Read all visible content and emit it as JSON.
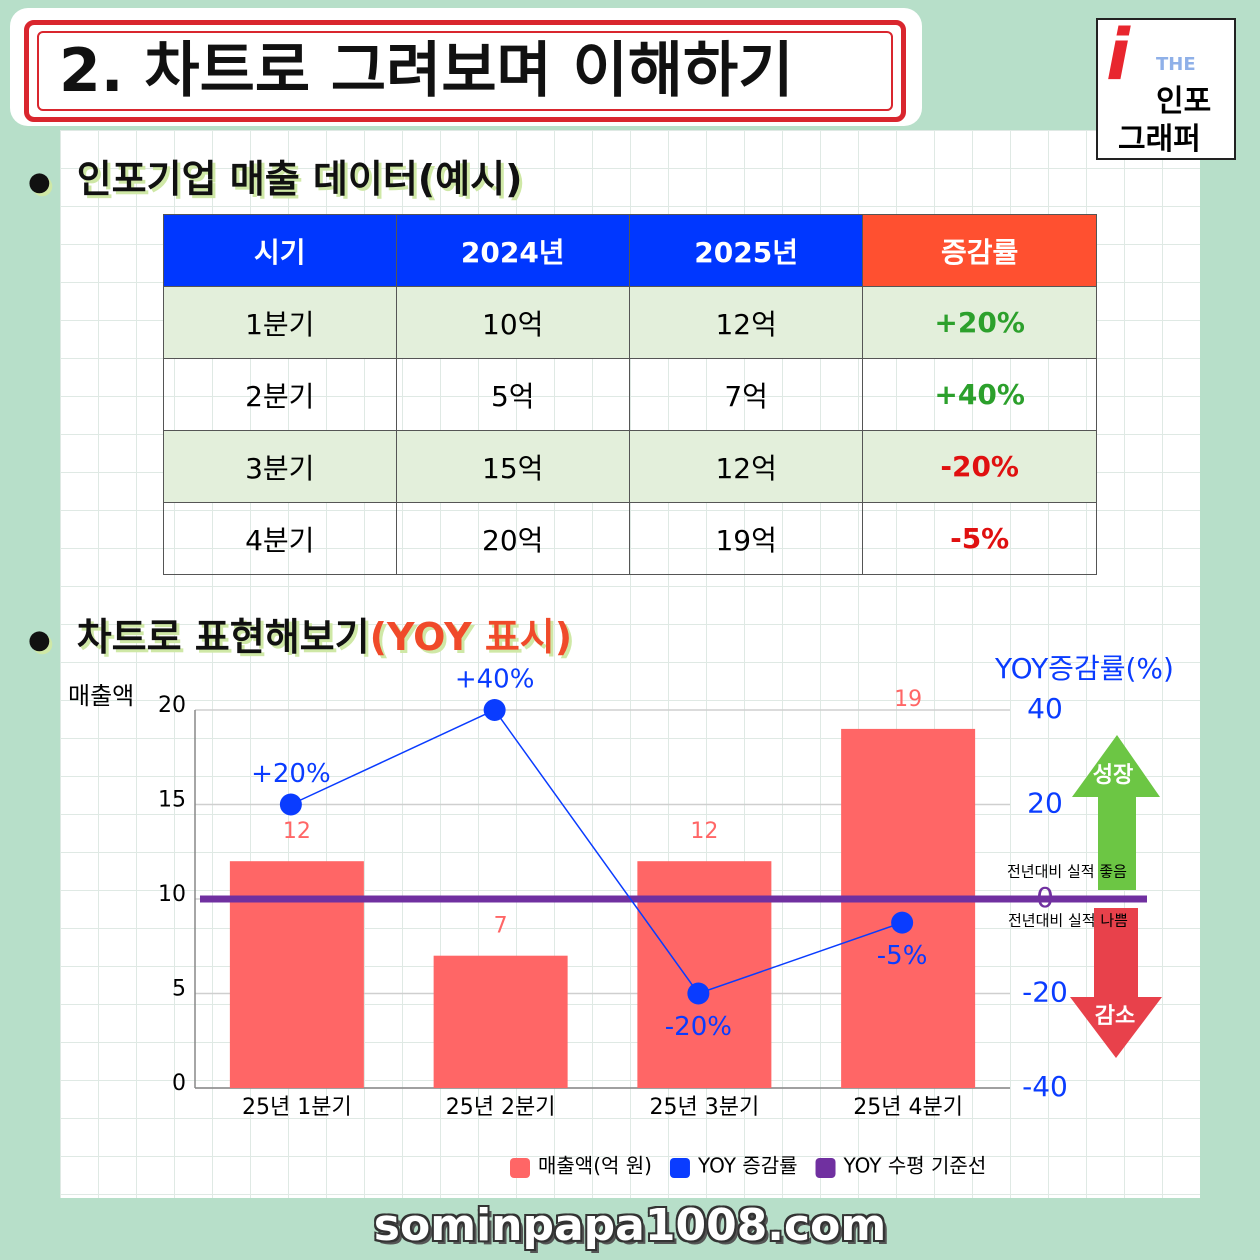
{
  "header": {
    "title": "2. 차트로 그려보며 이해하기",
    "logo": [
      "THE",
      "인포",
      "그래퍼"
    ]
  },
  "section1": {
    "title": "인포기업 매출 데이터(예시)"
  },
  "table": {
    "columns": [
      "시기",
      "2024년",
      "2025년",
      "증감률"
    ],
    "rows": [
      [
        "1분기",
        "10억",
        "12억",
        "+20%"
      ],
      [
        "2분기",
        "5억",
        "7억",
        "+40%"
      ],
      [
        "3분기",
        "15억",
        "12억",
        "-20%"
      ],
      [
        "4분기",
        "20억",
        "19억",
        "-5%"
      ]
    ]
  },
  "section2": {
    "title": "차트로 표현해보기",
    "highlight": "(YOY 표시)"
  },
  "chart_data": {
    "type": "combo",
    "y_label": "매출액",
    "y2_label": "YOY증감률(%)",
    "categories": [
      "25년 1분기",
      "25년 2분기",
      "25년 3분기",
      "25년 4분기"
    ],
    "series": [
      {
        "name": "매출액(억 원)",
        "color": "#ff6666",
        "values": [
          12,
          7,
          12,
          19
        ]
      },
      {
        "name": "YOY 증감률",
        "color": "#0a3cff",
        "axis": "y2",
        "values": [
          20,
          40,
          -20,
          -5
        ],
        "value_labels": [
          "+20%",
          "+40%",
          "-20%",
          "-5%"
        ]
      }
    ],
    "reference_line": {
      "name": "YOY 수평 기준선",
      "color": "#7030a0",
      "axis": "y2",
      "value": 0
    },
    "ylim": [
      0,
      20
    ],
    "yticks": [
      0,
      5,
      10,
      15,
      20
    ],
    "y2lim": [
      -40,
      40
    ],
    "y2ticks": [
      -40,
      -20,
      0,
      20,
      40
    ],
    "grid": true,
    "annotations": {
      "up": "성장",
      "down": "감소",
      "above": "전년대비 실적 좋음",
      "below": "전년대비 실적 나쁨"
    }
  },
  "footer": "sominpapa1008.com"
}
